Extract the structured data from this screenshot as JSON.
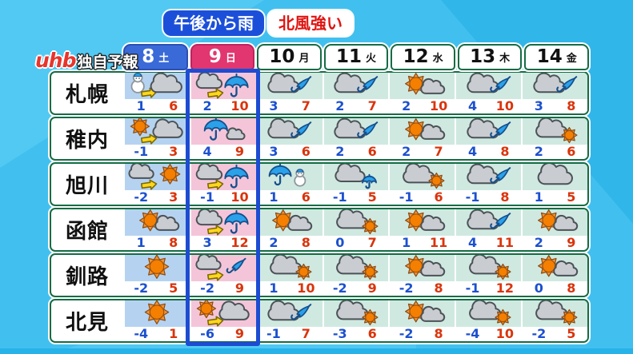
{
  "banner": {
    "left": "午後から雨",
    "right": "北風強い"
  },
  "brand": {
    "logo": "uhb",
    "label": "独自予報"
  },
  "header": {
    "days": [
      {
        "date": "8",
        "dow": "土",
        "type": "sat"
      },
      {
        "date": "9",
        "dow": "日",
        "type": "sun"
      },
      {
        "date": "10",
        "dow": "月",
        "type": "wd"
      },
      {
        "date": "11",
        "dow": "火",
        "type": "wd"
      },
      {
        "date": "12",
        "dow": "水",
        "type": "wd"
      },
      {
        "date": "13",
        "dow": "木",
        "type": "wd"
      },
      {
        "date": "14",
        "dow": "金",
        "type": "wd"
      }
    ],
    "highlighted_day": "9"
  },
  "cities": [
    {
      "name": "札幌",
      "cells": [
        {
          "icon": "snowman-to-cloud",
          "lo": "1",
          "hi": "6"
        },
        {
          "icon": "cloud-to-umbrella",
          "lo": "2",
          "hi": "10"
        },
        {
          "icon": "cloud-closedumbrella",
          "lo": "3",
          "hi": "7"
        },
        {
          "icon": "cloud-closedumbrella",
          "lo": "2",
          "hi": "7"
        },
        {
          "icon": "sun-cloud",
          "lo": "2",
          "hi": "10"
        },
        {
          "icon": "cloud-closedumbrella",
          "lo": "4",
          "hi": "10"
        },
        {
          "icon": "cloud-closedumbrella",
          "lo": "3",
          "hi": "8"
        }
      ]
    },
    {
      "name": "稚内",
      "cells": [
        {
          "icon": "sun-to-cloud",
          "lo": "-1",
          "hi": "3"
        },
        {
          "icon": "umbrella-cloud",
          "lo": "4",
          "hi": "9"
        },
        {
          "icon": "cloud-closedumbrella",
          "lo": "3",
          "hi": "6"
        },
        {
          "icon": "cloud-closedumbrella",
          "lo": "2",
          "hi": "6"
        },
        {
          "icon": "sun-cloud",
          "lo": "2",
          "hi": "7"
        },
        {
          "icon": "cloud-closedumbrella",
          "lo": "4",
          "hi": "8"
        },
        {
          "icon": "cloud-sun",
          "lo": "2",
          "hi": "6"
        }
      ]
    },
    {
      "name": "旭川",
      "cells": [
        {
          "icon": "cloud-to-sun",
          "lo": "-2",
          "hi": "3"
        },
        {
          "icon": "cloud-to-umbrella",
          "lo": "-1",
          "hi": "10"
        },
        {
          "icon": "umbrella-snowman",
          "lo": "1",
          "hi": "6"
        },
        {
          "icon": "cloud-umbrella-small",
          "lo": "-1",
          "hi": "5"
        },
        {
          "icon": "cloud-sun",
          "lo": "-1",
          "hi": "6"
        },
        {
          "icon": "cloud-closedumbrella",
          "lo": "-1",
          "hi": "8"
        },
        {
          "icon": "cloud",
          "lo": "1",
          "hi": "5"
        }
      ]
    },
    {
      "name": "函館",
      "cells": [
        {
          "icon": "sun-cloud",
          "lo": "1",
          "hi": "8"
        },
        {
          "icon": "cloud-to-umbrella",
          "lo": "3",
          "hi": "12"
        },
        {
          "icon": "sun-cloud",
          "lo": "2",
          "hi": "8"
        },
        {
          "icon": "cloud-sun",
          "lo": "0",
          "hi": "7"
        },
        {
          "icon": "sun-cloud",
          "lo": "1",
          "hi": "11"
        },
        {
          "icon": "cloud-closedumbrella",
          "lo": "4",
          "hi": "11"
        },
        {
          "icon": "sun-cloud",
          "lo": "2",
          "hi": "9"
        }
      ]
    },
    {
      "name": "釧路",
      "cells": [
        {
          "icon": "sun",
          "lo": "-2",
          "hi": "5"
        },
        {
          "icon": "cloud-to-closedumbrella",
          "lo": "-2",
          "hi": "9"
        },
        {
          "icon": "cloud-sun",
          "lo": "1",
          "hi": "10"
        },
        {
          "icon": "cloud-sun",
          "lo": "-2",
          "hi": "9"
        },
        {
          "icon": "sun-cloud",
          "lo": "-2",
          "hi": "8"
        },
        {
          "icon": "cloud-sun",
          "lo": "-1",
          "hi": "12"
        },
        {
          "icon": "sun-cloud",
          "lo": "0",
          "hi": "8"
        }
      ]
    },
    {
      "name": "北見",
      "cells": [
        {
          "icon": "sun",
          "lo": "-4",
          "hi": "1"
        },
        {
          "icon": "sun-to-cloud",
          "lo": "-6",
          "hi": "9"
        },
        {
          "icon": "cloud-closedumbrella",
          "lo": "-1",
          "hi": "7"
        },
        {
          "icon": "cloud-sun",
          "lo": "-3",
          "hi": "6"
        },
        {
          "icon": "sun-cloud",
          "lo": "-2",
          "hi": "8"
        },
        {
          "icon": "cloud-sun",
          "lo": "-4",
          "hi": "10"
        },
        {
          "icon": "cloud-sun",
          "lo": "-2",
          "hi": "5"
        }
      ]
    }
  ],
  "colors": {
    "background": "#41c0ef",
    "banner_blue": "#1c4fd9",
    "banner_red_text": "#e01410",
    "header_sat_bg": "#3a6ad8",
    "header_sun_bg": "#e23670",
    "table_border_green": "#156c45",
    "cell_sat_bg": "#b5d3f1",
    "cell_sun_bg": "#f4c5d9",
    "cell_weekday_bg": "#cfe9e1",
    "low_temp": "#1b50cf",
    "high_temp": "#da340c",
    "highlight_border": "#1d4cd2"
  },
  "chart_data": {
    "type": "table",
    "title": "uhb独自予報 (uhb original weekly weather forecast, Hokkaido)",
    "annotations": [
      "午後から雨",
      "北風強い"
    ],
    "columns": [
      "8 土",
      "9 日",
      "10 月",
      "11 火",
      "12 水",
      "13 木",
      "14 金"
    ],
    "rows": [
      "札幌",
      "稚内",
      "旭川",
      "函館",
      "釧路",
      "北見"
    ],
    "low_temps": [
      [
        1,
        2,
        3,
        2,
        2,
        4,
        3
      ],
      [
        -1,
        4,
        3,
        2,
        2,
        4,
        2
      ],
      [
        -2,
        -1,
        1,
        -1,
        -1,
        -1,
        1
      ],
      [
        1,
        3,
        2,
        0,
        1,
        4,
        2
      ],
      [
        -2,
        -2,
        1,
        -2,
        -2,
        -1,
        0
      ],
      [
        -4,
        -6,
        -1,
        -3,
        -2,
        -4,
        -2
      ]
    ],
    "high_temps": [
      [
        6,
        10,
        7,
        7,
        10,
        10,
        8
      ],
      [
        3,
        9,
        6,
        6,
        7,
        8,
        6
      ],
      [
        3,
        10,
        6,
        5,
        6,
        8,
        5
      ],
      [
        8,
        12,
        8,
        7,
        11,
        11,
        9
      ],
      [
        5,
        9,
        10,
        9,
        8,
        12,
        8
      ],
      [
        1,
        9,
        7,
        6,
        8,
        10,
        5
      ]
    ],
    "highlighted_column": "9 日"
  }
}
